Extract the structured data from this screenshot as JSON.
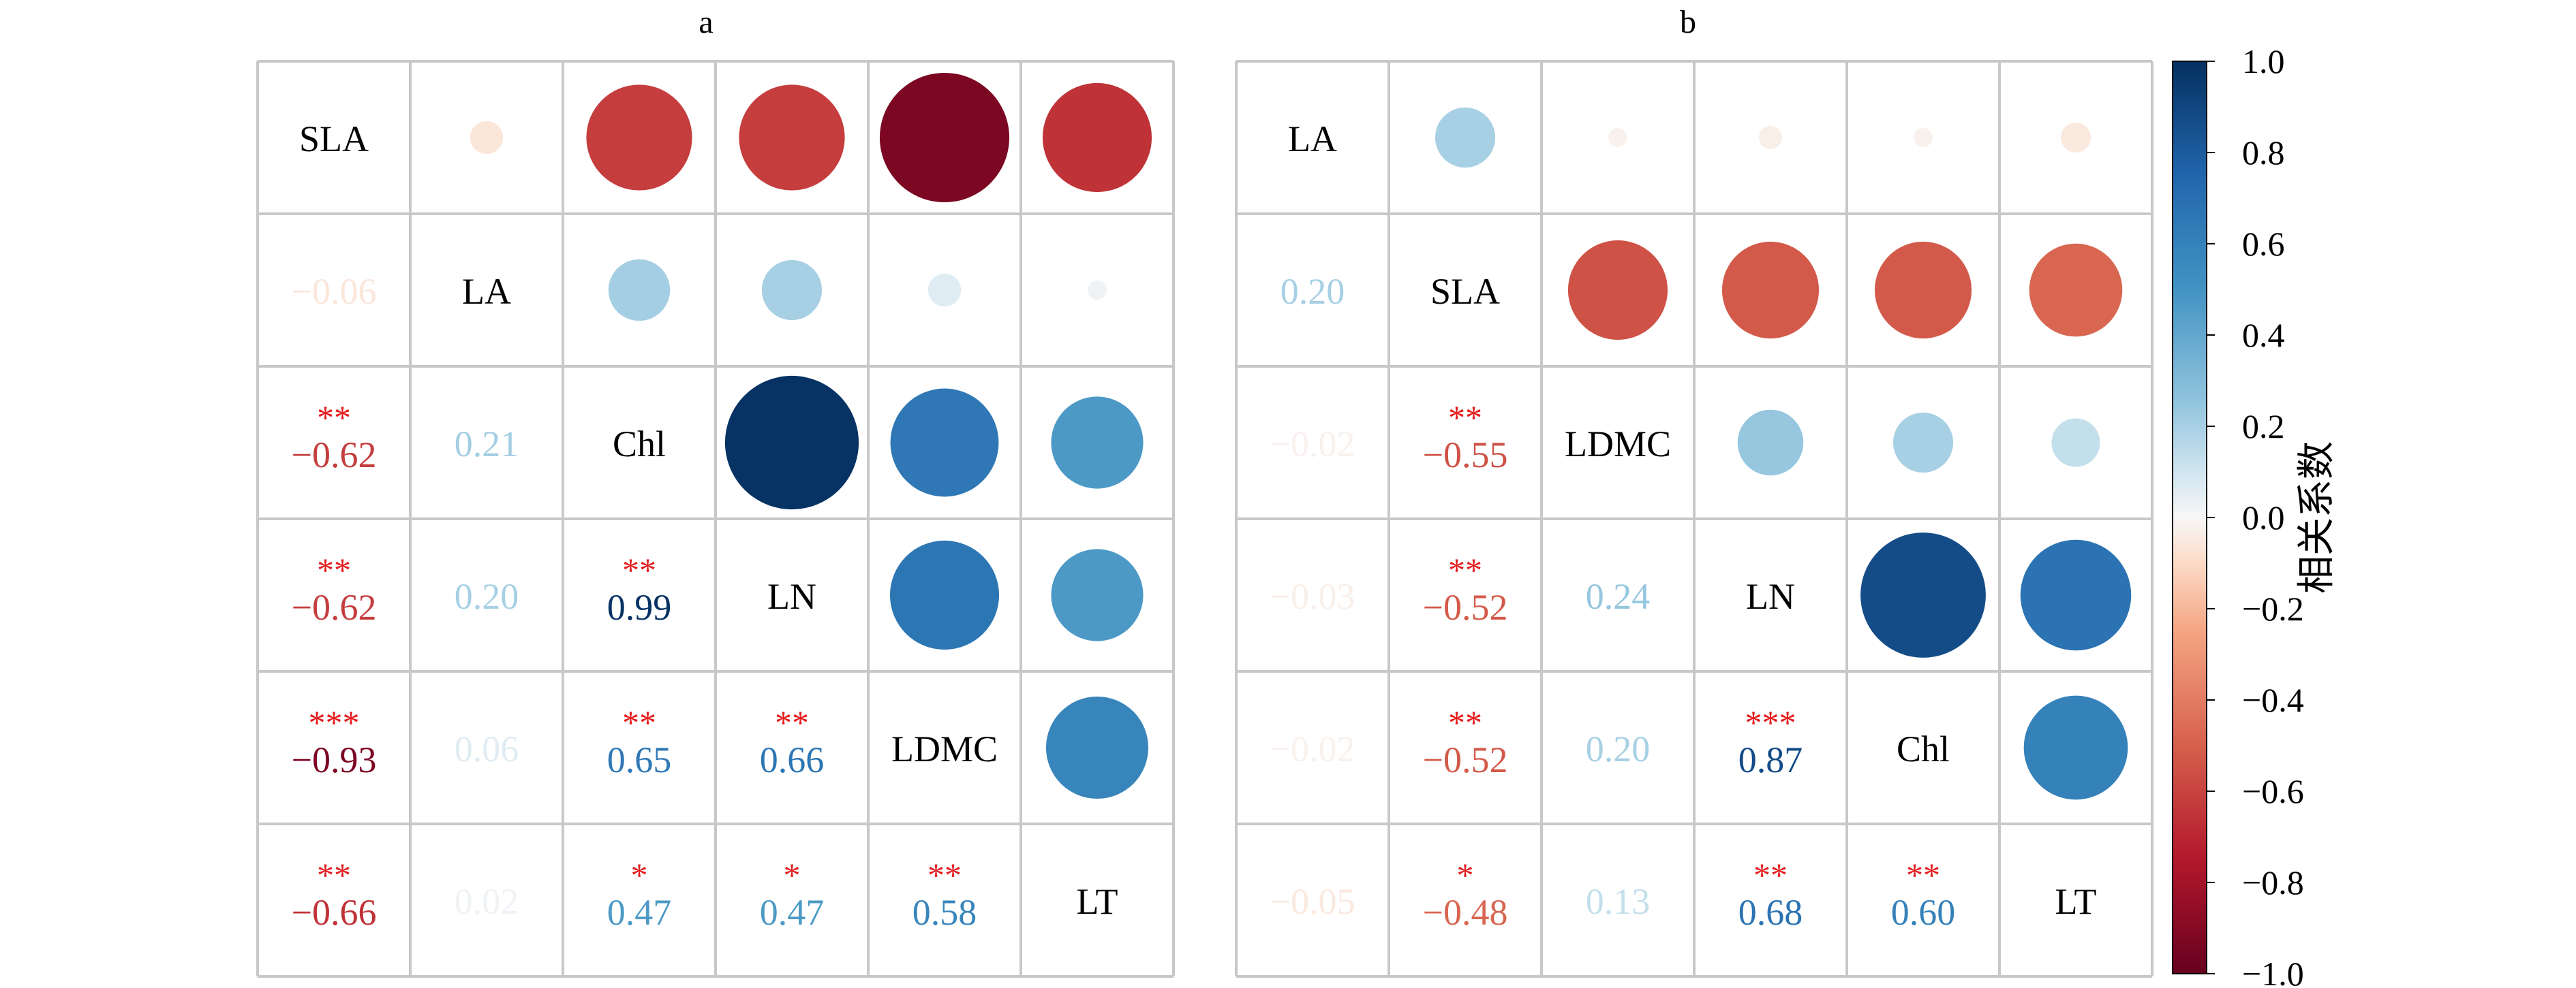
{
  "colorbar": {
    "label": "相关系数",
    "ticks": [
      "1.0",
      "0.8",
      "0.6",
      "0.4",
      "0.2",
      "0.0",
      "−0.2",
      "−0.4",
      "−0.6",
      "−0.8",
      "−1.0"
    ]
  },
  "significance_color": "#e41a1c",
  "chart_data": [
    {
      "type": "heatmap",
      "title": "a",
      "variables": [
        "SLA",
        "LA",
        "Chl",
        "LN",
        "LDMC",
        "LT"
      ],
      "matrix": [
        [
          1.0,
          -0.06,
          -0.62,
          -0.62,
          -0.93,
          -0.66
        ],
        [
          -0.06,
          1.0,
          0.21,
          0.2,
          0.06,
          0.02
        ],
        [
          -0.62,
          0.21,
          1.0,
          0.99,
          0.65,
          0.47
        ],
        [
          -0.62,
          0.2,
          0.99,
          1.0,
          0.66,
          0.47
        ],
        [
          -0.93,
          0.06,
          0.65,
          0.66,
          1.0,
          0.58
        ],
        [
          -0.66,
          0.02,
          0.47,
          0.47,
          0.58,
          1.0
        ]
      ],
      "lower_labels": [
        [],
        [
          "−0.06"
        ],
        [
          "−0.62",
          "0.21"
        ],
        [
          "−0.62",
          "0.20",
          "0.99"
        ],
        [
          "−0.93",
          "0.06",
          "0.65",
          "0.66"
        ],
        [
          "−0.66",
          "0.02",
          "0.47",
          "0.47",
          "0.58"
        ]
      ],
      "significance": [
        [],
        [
          ""
        ],
        [
          "**",
          ""
        ],
        [
          "**",
          "",
          "**"
        ],
        [
          "***",
          "",
          "**",
          "**"
        ],
        [
          "**",
          "",
          "*",
          "*",
          "**"
        ]
      ],
      "vlim": [
        -1,
        1
      ]
    },
    {
      "type": "heatmap",
      "title": "b",
      "variables": [
        "LA",
        "SLA",
        "LDMC",
        "LN",
        "Chl",
        "LT"
      ],
      "matrix": [
        [
          1.0,
          0.2,
          -0.02,
          -0.03,
          -0.02,
          -0.05
        ],
        [
          0.2,
          1.0,
          -0.55,
          -0.52,
          -0.52,
          -0.48
        ],
        [
          -0.02,
          -0.55,
          1.0,
          0.24,
          0.2,
          0.13
        ],
        [
          -0.03,
          -0.52,
          0.24,
          1.0,
          0.87,
          0.68
        ],
        [
          -0.02,
          -0.52,
          0.2,
          0.87,
          1.0,
          0.6
        ],
        [
          -0.05,
          -0.48,
          0.13,
          0.68,
          0.6,
          1.0
        ]
      ],
      "lower_labels": [
        [],
        [
          "0.20"
        ],
        [
          "−0.02",
          "−0.55"
        ],
        [
          "−0.03",
          "−0.52",
          "0.24"
        ],
        [
          "−0.02",
          "−0.52",
          "0.20",
          "0.87"
        ],
        [
          "−0.05",
          "−0.48",
          "0.13",
          "0.68",
          "0.60"
        ]
      ],
      "significance": [
        [],
        [
          ""
        ],
        [
          "",
          "**"
        ],
        [
          "",
          "**",
          ""
        ],
        [
          "",
          "**",
          "",
          "***"
        ],
        [
          "",
          "*",
          "",
          "**",
          "**"
        ]
      ],
      "vlim": [
        -1,
        1
      ]
    }
  ]
}
